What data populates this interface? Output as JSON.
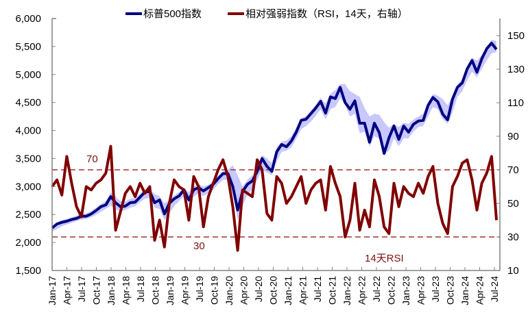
{
  "legend": {
    "items": [
      {
        "label": "标普500指数",
        "color": "#000080"
      },
      {
        "label": "相对强弱指数（RSI，14天，右轴）",
        "color": "#800000"
      }
    ]
  },
  "annotations": {
    "rsi_upper": "70",
    "rsi_lower": "30",
    "rsi_label": "14天RSI"
  },
  "colors": {
    "spx": "#000080",
    "spx_band": "#c8c8ff",
    "rsi": "#800000",
    "threshold": "#a03030",
    "axis": "#808080"
  },
  "chart_data": {
    "type": "line",
    "title": "",
    "xlabel": "",
    "ylabel": "",
    "y2label": "",
    "ylim": [
      1500,
      6000
    ],
    "y2lim": [
      10,
      150
    ],
    "y_ticks": [
      "1,500",
      "2,000",
      "2,500",
      "3,000",
      "3,500",
      "4,000",
      "4,500",
      "5,000",
      "5,500",
      "6,000"
    ],
    "y2_ticks": [
      "10",
      "30",
      "50",
      "70",
      "90",
      "110",
      "130",
      "150"
    ],
    "categories": [
      "Jan-17",
      "Apr-17",
      "Jul-17",
      "Oct-17",
      "Jan-18",
      "Apr-18",
      "Jul-18",
      "Oct-18",
      "Jan-19",
      "Apr-19",
      "Jul-19",
      "Oct-19",
      "Jan-20",
      "Apr-20",
      "Jul-20",
      "Oct-20",
      "Jan-21",
      "Apr-21",
      "Jul-21",
      "Oct-21",
      "Jan-22",
      "Apr-22",
      "Jul-22",
      "Oct-22",
      "Jan-23",
      "Apr-23",
      "Jul-23",
      "Oct-23",
      "Jan-24",
      "Apr-24",
      "Jul-24"
    ],
    "x_monthly": [
      "Jan-17",
      "Feb-17",
      "Mar-17",
      "Apr-17",
      "May-17",
      "Jun-17",
      "Jul-17",
      "Aug-17",
      "Sep-17",
      "Oct-17",
      "Nov-17",
      "Dec-17",
      "Jan-18",
      "Feb-18",
      "Mar-18",
      "Apr-18",
      "May-18",
      "Jun-18",
      "Jul-18",
      "Aug-18",
      "Sep-18",
      "Oct-18",
      "Nov-18",
      "Dec-18",
      "Jan-19",
      "Feb-19",
      "Mar-19",
      "Apr-19",
      "May-19",
      "Jun-19",
      "Jul-19",
      "Aug-19",
      "Sep-19",
      "Oct-19",
      "Nov-19",
      "Dec-19",
      "Jan-20",
      "Feb-20",
      "Mar-20",
      "Apr-20",
      "May-20",
      "Jun-20",
      "Jul-20",
      "Aug-20",
      "Sep-20",
      "Oct-20",
      "Nov-20",
      "Dec-20",
      "Jan-21",
      "Feb-21",
      "Mar-21",
      "Apr-21",
      "May-21",
      "Jun-21",
      "Jul-21",
      "Aug-21",
      "Sep-21",
      "Oct-21",
      "Nov-21",
      "Dec-21",
      "Jan-22",
      "Feb-22",
      "Mar-22",
      "Apr-22",
      "May-22",
      "Jun-22",
      "Jul-22",
      "Aug-22",
      "Sep-22",
      "Oct-22",
      "Nov-22",
      "Dec-22",
      "Jan-23",
      "Feb-23",
      "Mar-23",
      "Apr-23",
      "May-23",
      "Jun-23",
      "Jul-23",
      "Aug-23",
      "Sep-23",
      "Oct-23",
      "Nov-23",
      "Dec-23",
      "Jan-24",
      "Feb-24",
      "Mar-24",
      "Apr-24",
      "May-24",
      "Jun-24",
      "Jul-24",
      "Aug-24"
    ],
    "series": [
      {
        "name": "标普500指数",
        "axis": "left",
        "values": [
          2260,
          2330,
          2360,
          2380,
          2410,
          2430,
          2470,
          2470,
          2510,
          2570,
          2640,
          2670,
          2820,
          2710,
          2640,
          2650,
          2710,
          2720,
          2810,
          2900,
          2910,
          2710,
          2760,
          2510,
          2700,
          2780,
          2830,
          2940,
          2760,
          2940,
          2980,
          2920,
          2980,
          3040,
          3140,
          3230,
          3230,
          3000,
          2580,
          2910,
          3040,
          3100,
          3270,
          3500,
          3360,
          3270,
          3620,
          3750,
          3710,
          3810,
          3970,
          4180,
          4200,
          4300,
          4400,
          4520,
          4310,
          4600,
          4570,
          4770,
          4500,
          4380,
          4530,
          4130,
          4130,
          3790,
          4130,
          3960,
          3590,
          3870,
          4080,
          3840,
          4080,
          3970,
          4110,
          4170,
          4180,
          4450,
          4590,
          4510,
          4290,
          4190,
          4560,
          4770,
          4850,
          5100,
          5250,
          5040,
          5280,
          5460,
          5560,
          5450
        ]
      },
      {
        "name": "标普500指数 区间带(下沿)",
        "axis": "left",
        "values": [
          2200,
          2240,
          2290,
          2320,
          2350,
          2380,
          2410,
          2420,
          2450,
          2490,
          2550,
          2600,
          2660,
          2590,
          2560,
          2580,
          2620,
          2650,
          2720,
          2780,
          2800,
          2620,
          2600,
          2400,
          2520,
          2650,
          2740,
          2830,
          2720,
          2820,
          2880,
          2830,
          2880,
          2940,
          3040,
          3120,
          3120,
          2900,
          2400,
          2650,
          2850,
          2950,
          3120,
          3300,
          3250,
          3200,
          3450,
          3620,
          3640,
          3700,
          3850,
          4020,
          4080,
          4160,
          4260,
          4380,
          4200,
          4380,
          4420,
          4580,
          4460,
          4250,
          4300,
          3950,
          3980,
          3720,
          3900,
          3850,
          3580,
          3640,
          3860,
          3720,
          3860,
          3860,
          3980,
          4060,
          4080,
          4250,
          4420,
          4380,
          4200,
          4120,
          4320,
          4600,
          4700,
          4900,
          5050,
          4950,
          5100,
          5250,
          5380,
          5400
        ]
      },
      {
        "name": "标普500指数 区间带(上沿)",
        "axis": "left",
        "values": [
          2290,
          2360,
          2400,
          2420,
          2450,
          2480,
          2510,
          2520,
          2560,
          2620,
          2690,
          2740,
          2900,
          2820,
          2740,
          2730,
          2780,
          2800,
          2870,
          2950,
          2960,
          2860,
          2830,
          2700,
          2760,
          2840,
          2900,
          2980,
          2900,
          3000,
          3040,
          3000,
          3030,
          3100,
          3190,
          3270,
          3300,
          3380,
          3200,
          3000,
          3120,
          3200,
          3350,
          3560,
          3500,
          3420,
          3700,
          3800,
          3820,
          3900,
          4050,
          4220,
          4260,
          4360,
          4460,
          4580,
          4480,
          4660,
          4720,
          4830,
          4830,
          4700,
          4650,
          4600,
          4400,
          4250,
          4300,
          4280,
          4150,
          4050,
          4120,
          4060,
          4140,
          4120,
          4200,
          4250,
          4300,
          4500,
          4650,
          4620,
          4560,
          4450,
          4620,
          4820,
          4920,
          5150,
          5300,
          5250,
          5350,
          5500,
          5620,
          5600
        ]
      },
      {
        "name": "相对强弱指数（RSI，14天，右轴）",
        "axis": "right",
        "values": [
          60,
          64,
          55,
          78,
          62,
          48,
          42,
          60,
          58,
          62,
          64,
          68,
          84,
          34,
          45,
          56,
          60,
          54,
          62,
          56,
          60,
          28,
          40,
          24,
          50,
          64,
          60,
          58,
          40,
          66,
          60,
          36,
          54,
          62,
          70,
          76,
          66,
          48,
          22,
          58,
          56,
          54,
          76,
          70,
          44,
          40,
          66,
          62,
          50,
          54,
          60,
          66,
          50,
          58,
          62,
          64,
          46,
          72,
          62,
          54,
          30,
          40,
          62,
          34,
          46,
          36,
          64,
          54,
          36,
          32,
          62,
          48,
          60,
          56,
          54,
          62,
          56,
          66,
          72,
          50,
          38,
          32,
          60,
          66,
          74,
          76,
          64,
          46,
          62,
          68,
          78,
          40
        ]
      }
    ],
    "reference_lines": [
      {
        "axis": "right",
        "value": 70,
        "style": "dashed",
        "label": "70"
      },
      {
        "axis": "right",
        "value": 30,
        "style": "dashed",
        "label": "30"
      }
    ],
    "legend_position": "top",
    "grid": false
  }
}
